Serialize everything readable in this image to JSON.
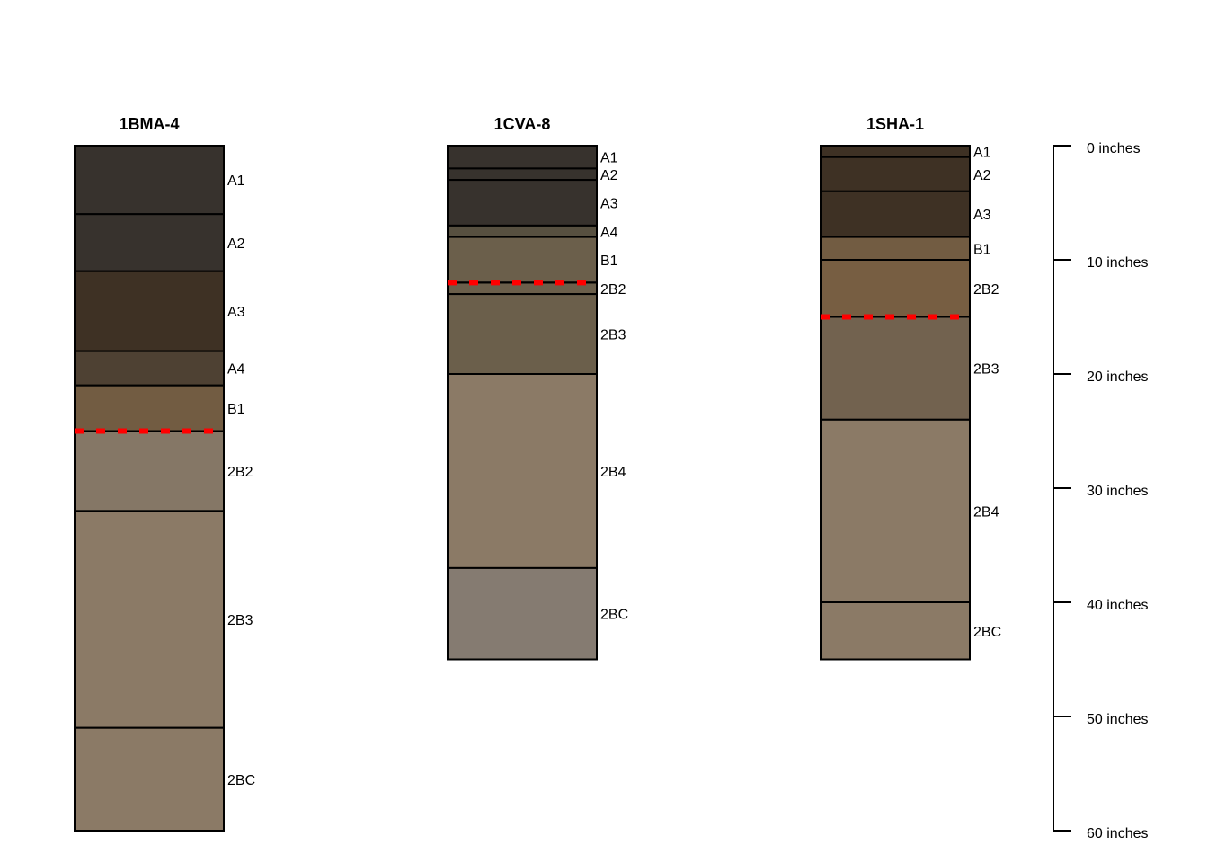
{
  "chart_data": {
    "type": "soil-profile",
    "scale": {
      "unit": "inches",
      "range": [
        0,
        60
      ],
      "ticks": [
        0,
        10,
        20,
        30,
        40,
        50,
        60
      ],
      "tick_labels": [
        "0 inches",
        "10 inches",
        "20 inches",
        "30 inches",
        "40 inches",
        "50 inches",
        "60 inches"
      ]
    },
    "marker_color": "#ff0000",
    "profiles": [
      {
        "name": "1BMA-4",
        "marker_depth": 25,
        "horizons": [
          {
            "name": "A1",
            "top": 0,
            "bottom": 6,
            "color": "#37322d"
          },
          {
            "name": "A2",
            "top": 6,
            "bottom": 11,
            "color": "#37322d"
          },
          {
            "name": "A3",
            "top": 11,
            "bottom": 18,
            "color": "#3e3124"
          },
          {
            "name": "A4",
            "top": 18,
            "bottom": 21,
            "color": "#4e4133"
          },
          {
            "name": "B1",
            "top": 21,
            "bottom": 25,
            "color": "#725c42"
          },
          {
            "name": "2B2",
            "top": 25,
            "bottom": 32,
            "color": "#857766"
          },
          {
            "name": "2B3",
            "top": 32,
            "bottom": 51,
            "color": "#8b7a66"
          },
          {
            "name": "2BC",
            "top": 51,
            "bottom": 60,
            "color": "#8b7a66"
          }
        ]
      },
      {
        "name": "1CVA-8",
        "marker_depth": 12,
        "horizons": [
          {
            "name": "A1",
            "top": 0,
            "bottom": 2,
            "color": "#37322d"
          },
          {
            "name": "A2",
            "top": 2,
            "bottom": 3,
            "color": "#37322d"
          },
          {
            "name": "A3",
            "top": 3,
            "bottom": 7,
            "color": "#37322d"
          },
          {
            "name": "A4",
            "top": 7,
            "bottom": 8,
            "color": "#575040"
          },
          {
            "name": "B1",
            "top": 8,
            "bottom": 12,
            "color": "#6b5f4b"
          },
          {
            "name": "2B2",
            "top": 12,
            "bottom": 13,
            "color": "#6b5f4b"
          },
          {
            "name": "2B3",
            "top": 13,
            "bottom": 20,
            "color": "#6b5f4b"
          },
          {
            "name": "2B4",
            "top": 20,
            "bottom": 37,
            "color": "#8b7a66"
          },
          {
            "name": "2BC",
            "top": 37,
            "bottom": 45,
            "color": "#857b71"
          }
        ]
      },
      {
        "name": "1SHA-1",
        "marker_depth": 15,
        "horizons": [
          {
            "name": "A1",
            "top": 0,
            "bottom": 1,
            "color": "#3e3124"
          },
          {
            "name": "A2",
            "top": 1,
            "bottom": 4,
            "color": "#3e3124"
          },
          {
            "name": "A3",
            "top": 4,
            "bottom": 8,
            "color": "#3e3124"
          },
          {
            "name": "B1",
            "top": 8,
            "bottom": 10,
            "color": "#725c42"
          },
          {
            "name": "2B2",
            "top": 10,
            "bottom": 15,
            "color": "#775e42"
          },
          {
            "name": "2B3",
            "top": 15,
            "bottom": 24,
            "color": "#72624f"
          },
          {
            "name": "2B4",
            "top": 24,
            "bottom": 40,
            "color": "#8b7a66"
          },
          {
            "name": "2BC",
            "top": 40,
            "bottom": 45,
            "color": "#8b7a66"
          }
        ]
      }
    ]
  }
}
